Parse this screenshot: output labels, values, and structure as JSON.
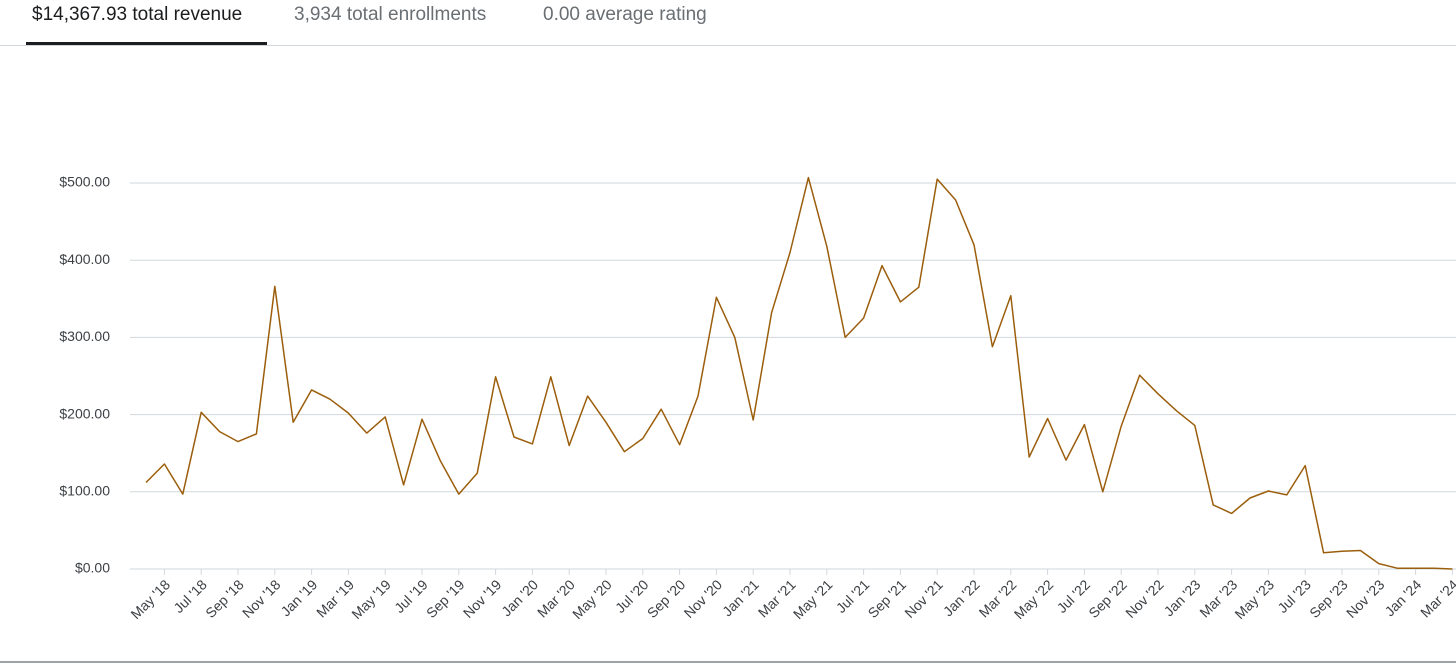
{
  "tabs": [
    "$14,367.93 total revenue",
    "3,934 total enrollments",
    "0.00 average rating"
  ],
  "chart_data": {
    "type": "line",
    "color": "#9b5e0c",
    "grid": true,
    "categories": [
      null,
      "May '18",
      null,
      "Jul '18",
      null,
      "Sep '18",
      null,
      "Nov '18",
      null,
      "Jan '19",
      null,
      "Mar '19",
      null,
      "May '19",
      null,
      "Jul '19",
      null,
      "Sep '19",
      null,
      "Nov '19",
      null,
      "Jan '20",
      null,
      "Mar '20",
      null,
      "May '20",
      null,
      "Jul '20",
      null,
      "Sep '20",
      null,
      "Nov '20",
      null,
      "Jan '21",
      null,
      "Mar '21",
      null,
      "May '21",
      null,
      "Jul '21",
      null,
      "Sep '21",
      null,
      "Nov '21",
      null,
      "Jan '22",
      null,
      "Mar '22",
      null,
      "May '22",
      null,
      "Jul '22",
      null,
      "Sep '22",
      null,
      "Nov '22",
      null,
      "Jan '23",
      null,
      "Mar '23",
      null,
      "May '23",
      null,
      "Jul '23",
      null,
      "Sep '23",
      null,
      "Nov '23",
      null,
      "Jan '24",
      null,
      "Mar '24"
    ],
    "values": [
      112,
      136,
      97,
      203,
      178,
      165,
      175,
      366,
      190,
      232,
      220,
      202,
      176,
      197,
      109,
      194,
      140,
      97,
      124,
      249,
      171,
      162,
      249,
      160,
      224,
      190,
      152,
      169,
      207,
      161,
      224,
      352,
      300,
      193,
      332,
      410,
      507,
      418,
      300,
      325,
      393,
      346,
      365,
      505,
      478,
      420,
      288,
      354,
      145,
      195,
      141,
      187,
      100,
      185,
      251,
      227,
      205,
      186,
      83,
      72,
      92,
      101,
      96,
      134,
      21,
      23,
      24,
      7,
      1,
      1,
      1,
      0
    ],
    "ylim": [
      0,
      500
    ],
    "yticks": [
      {
        "value": 0,
        "label": "$0.00"
      },
      {
        "value": 100,
        "label": "$100.00"
      },
      {
        "value": 200,
        "label": "$200.00"
      },
      {
        "value": 300,
        "label": "$300.00"
      },
      {
        "value": 400,
        "label": "$400.00"
      },
      {
        "value": 500,
        "label": "$500.00"
      }
    ]
  }
}
